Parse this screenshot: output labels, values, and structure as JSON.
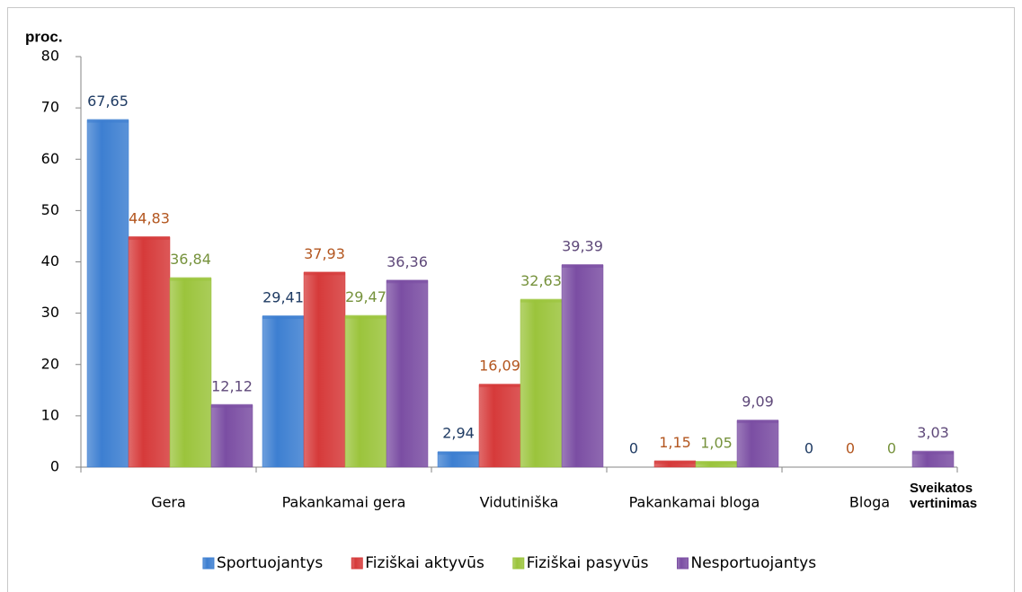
{
  "chart_data": {
    "type": "bar",
    "y_axis_label": "proc.",
    "x_axis_label": "Sveikatos vertinimas",
    "categories": [
      "Gera",
      "Pakankamai gera",
      "Vidutiniška",
      "Pakankamai bloga",
      "Bloga"
    ],
    "series": [
      {
        "name": "Sportuojantys",
        "color": "#3d7fd1",
        "label_color": "#1f3b63",
        "values": [
          67.65,
          29.41,
          2.94,
          0,
          0
        ],
        "value_labels": [
          "67,65",
          "29,41",
          "2,94",
          "0",
          "0"
        ]
      },
      {
        "name": "Fiziškai aktyvūs",
        "color": "#d63a3a",
        "label_color": "#b3561f",
        "values": [
          44.83,
          37.93,
          16.09,
          1.15,
          0
        ],
        "value_labels": [
          "44,83",
          "37,93",
          "16,09",
          "1,15",
          "0"
        ]
      },
      {
        "name": "Fiziškai pasyvūs",
        "color": "#9bc43c",
        "label_color": "#76923c",
        "values": [
          36.84,
          29.47,
          32.63,
          1.05,
          0
        ],
        "value_labels": [
          "36,84",
          "29,47",
          "32,63",
          "1,05",
          "0"
        ]
      },
      {
        "name": "Nesportuojantys",
        "color": "#7b4ea3",
        "label_color": "#5f497a",
        "values": [
          12.12,
          36.36,
          39.39,
          9.09,
          3.03
        ],
        "value_labels": [
          "12,12",
          "36,36",
          "39,39",
          "9,09",
          "3,03"
        ]
      }
    ],
    "ylim": [
      0,
      80
    ],
    "yticks": [
      0,
      10,
      20,
      30,
      40,
      50,
      60,
      70,
      80
    ],
    "legend": "bottom"
  }
}
